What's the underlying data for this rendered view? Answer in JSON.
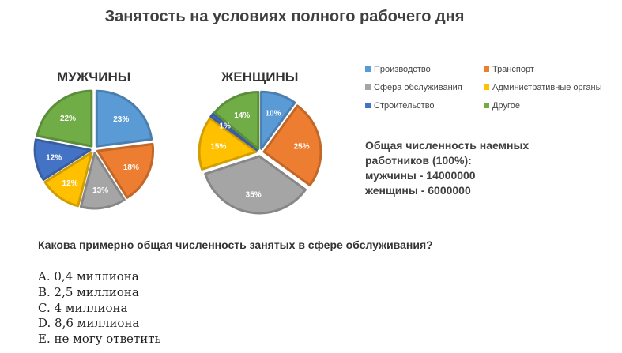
{
  "title": "Занятость на условиях полного рабочего дня",
  "colors": {
    "Производство": "#5b9bd5",
    "Транспорт": "#ed7d31",
    "Сфера обслуживания": "#a5a5a5",
    "Административные органы": "#ffc000",
    "Строительство": "#4472c4",
    "Другое": "#70ad47"
  },
  "chart_data": [
    {
      "type": "pie",
      "title": "МУЖЧИНЫ",
      "categories": [
        "Производство",
        "Транспорт",
        "Сфера обслуживания",
        "Административные органы",
        "Строительство",
        "Другое"
      ],
      "values": [
        23,
        18,
        13,
        12,
        12,
        22
      ],
      "labels": [
        "23%",
        "18%",
        "13%",
        "12%",
        "12%",
        "22%"
      ],
      "exploded": [
        true,
        true,
        true,
        true,
        true,
        true
      ]
    },
    {
      "type": "pie",
      "title": "ЖЕНЩИНЫ",
      "categories": [
        "Производство",
        "Транспорт",
        "Сфера обслуживания",
        "Административные органы",
        "Строительство",
        "Другое"
      ],
      "values": [
        10,
        25,
        35,
        15,
        1,
        14
      ],
      "labels": [
        "10%",
        "25%",
        "35%",
        "15%",
        "1%",
        "14%"
      ],
      "exploded": [
        true,
        true,
        true,
        true,
        true,
        true
      ]
    }
  ],
  "legend": {
    "items": [
      {
        "label": "Производство",
        "color": "#5b9bd5"
      },
      {
        "label": "Транспорт",
        "color": "#ed7d31"
      },
      {
        "label": "Сфера обслуживания",
        "color": "#a5a5a5"
      },
      {
        "label": "Административные органы",
        "color": "#ffc000"
      },
      {
        "label": "Строительство",
        "color": "#4472c4"
      },
      {
        "label": "Другое",
        "color": "#70ad47"
      }
    ]
  },
  "info": {
    "line1": "Общая численность наемных",
    "line2": "работников (100%):",
    "line3": "мужчины - 14000000",
    "line4": "женщины - 6000000"
  },
  "question": "Какова примерно общая численность занятых в сфере обслуживания?",
  "options": [
    "A. 0,4 миллиона",
    "B. 2,5 миллиона",
    "C. 4 миллиона",
    "D. 8,6 миллиона",
    "E. не могу ответить"
  ]
}
